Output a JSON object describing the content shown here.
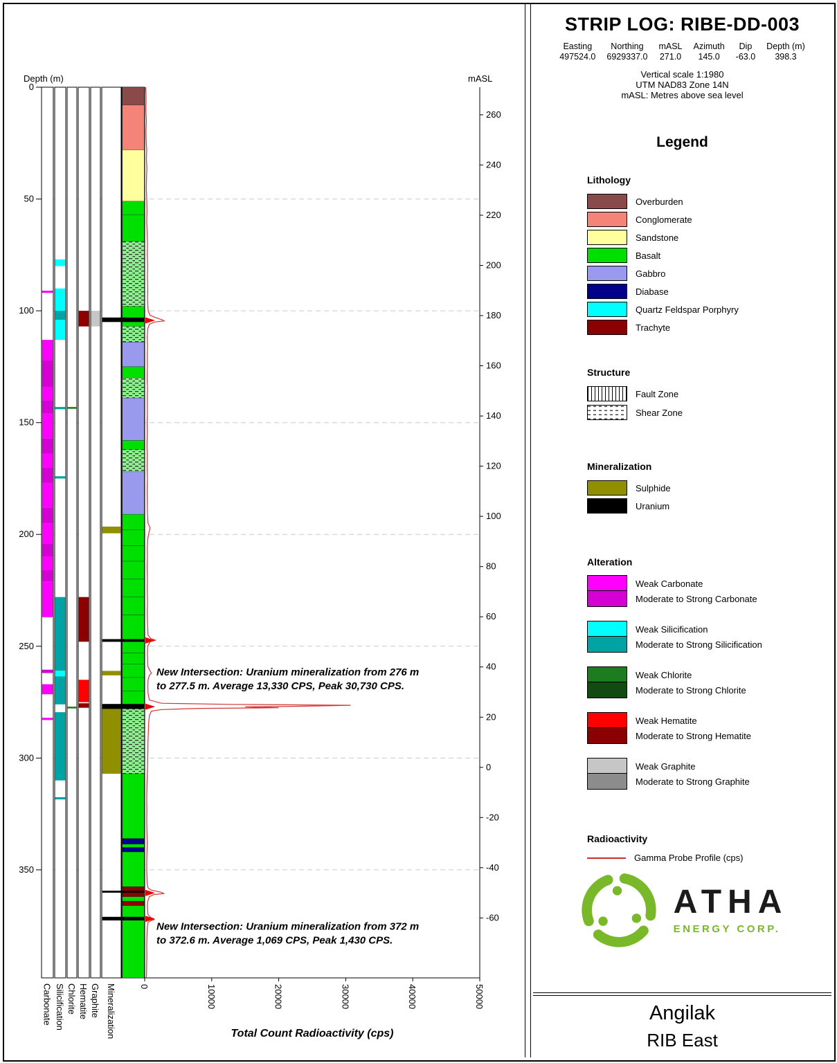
{
  "header": {
    "title": "STRIP LOG: RIBE-DD-003",
    "meta": [
      {
        "label": "Easting",
        "value": "497524.0"
      },
      {
        "label": "Northing",
        "value": "6929337.0"
      },
      {
        "label": "mASL",
        "value": "271.0"
      },
      {
        "label": "Azimuth",
        "value": "145.0"
      },
      {
        "label": "Dip",
        "value": "-63.0"
      },
      {
        "label": "Depth (m)",
        "value": "398.3"
      }
    ],
    "scale_lines": [
      "Vertical scale 1:1980",
      "UTM NAD83 Zone 14N",
      "mASL: Metres above sea level"
    ]
  },
  "legend": {
    "title": "Legend",
    "sections": {
      "lithology": {
        "title": "Lithology",
        "items": [
          {
            "label": "Overburden",
            "color": "#8b4a4a"
          },
          {
            "label": "Conglomerate",
            "color": "#f48478"
          },
          {
            "label": "Sandstone",
            "color": "#ffff9e"
          },
          {
            "label": "Basalt",
            "color": "#00e000"
          },
          {
            "label": "Gabbro",
            "color": "#9999ee"
          },
          {
            "label": "Diabase",
            "color": "#00008b"
          },
          {
            "label": "Quartz Feldspar Porphyry",
            "color": "#00ffff"
          },
          {
            "label": "Trachyte",
            "color": "#8b0000"
          }
        ]
      },
      "structure": {
        "title": "Structure",
        "items": [
          {
            "label": "Fault Zone",
            "pattern": "fault"
          },
          {
            "label": "Shear Zone",
            "pattern": "shear"
          }
        ]
      },
      "mineralization": {
        "title": "Mineralization",
        "items": [
          {
            "label": "Sulphide",
            "color": "#8f8f00"
          },
          {
            "label": "Uranium",
            "color": "#000000"
          }
        ]
      },
      "alteration": {
        "title": "Alteration",
        "pairs": [
          {
            "key": "carbonate",
            "weak_label": "Weak Carbonate",
            "weak_color": "#ff00ff",
            "strong_label": "Moderate to Strong Carbonate",
            "strong_color": "#d400d4"
          },
          {
            "key": "silicification",
            "weak_label": "Weak Silicification",
            "weak_color": "#00ffff",
            "strong_label": "Moderate to Strong Silicification",
            "strong_color": "#00a3a3"
          },
          {
            "key": "chlorite",
            "weak_label": "Weak Chlorite",
            "weak_color": "#1d7c1d",
            "strong_label": "Moderate to Strong Chlorite",
            "strong_color": "#124b12"
          },
          {
            "key": "hematite",
            "weak_label": "Weak Hematite",
            "weak_color": "#ff0000",
            "strong_label": "Moderate to Strong Hematite",
            "strong_color": "#8b0000"
          },
          {
            "key": "graphite",
            "weak_label": "Weak Graphite",
            "weak_color": "#c6c6c6",
            "strong_label": "Moderate to Strong Graphite",
            "strong_color": "#8c8c8c"
          }
        ]
      },
      "radioactivity": {
        "title": "Radioactivity",
        "items": [
          {
            "label": "Gamma Probe Profile (cps)",
            "line_color": "#c03030"
          }
        ]
      }
    }
  },
  "logo": {
    "name": "ATHA",
    "subtitle": "ENERGY CORP.",
    "brand_green": "#79b829"
  },
  "footer": {
    "project": "Angilak",
    "area": "RIB East"
  },
  "chart_data": {
    "type": "striplog",
    "hole_id": "RIBE-DD-003",
    "depth_axis": {
      "label": "Depth (m)",
      "ticks": [
        0,
        50,
        100,
        150,
        200,
        250,
        300,
        350
      ],
      "max": 398.3
    },
    "masl_axis": {
      "label": "mASL",
      "collar_masl": 271.0,
      "dip_degrees": 63.0,
      "ticks": [
        260,
        240,
        220,
        200,
        180,
        160,
        140,
        120,
        100,
        80,
        60,
        40,
        20,
        0,
        -20,
        -40,
        -60
      ]
    },
    "gamma_axis": {
      "label": "Total Count Radioactivity (cps)",
      "ticks": [
        0,
        10000,
        20000,
        30000,
        40000,
        50000
      ],
      "max": 50000,
      "color": "#d03434",
      "arrow_color": "#e80000"
    },
    "columns": [
      "Carbonate",
      "Silicification",
      "Chlorite",
      "Hematite",
      "Graphite",
      "Mineralization"
    ],
    "lithology_intervals": [
      {
        "from": 0,
        "to": 8,
        "unit": "Overburden"
      },
      {
        "from": 8,
        "to": 28,
        "unit": "Conglomerate"
      },
      {
        "from": 28,
        "to": 51,
        "unit": "Sandstone"
      },
      {
        "from": 51,
        "to": 57,
        "unit": "Basalt"
      },
      {
        "from": 57,
        "to": 69,
        "unit": "Basalt"
      },
      {
        "from": 69,
        "to": 98,
        "unit": "Basalt",
        "structure": "Shear Zone"
      },
      {
        "from": 98,
        "to": 107,
        "unit": "Basalt"
      },
      {
        "from": 107,
        "to": 114,
        "unit": "Basalt",
        "structure": "Shear Zone"
      },
      {
        "from": 114,
        "to": 125,
        "unit": "Gabbro"
      },
      {
        "from": 125,
        "to": 130,
        "unit": "Basalt"
      },
      {
        "from": 130,
        "to": 139,
        "unit": "Basalt",
        "structure": "Shear Zone"
      },
      {
        "from": 139,
        "to": 158,
        "unit": "Gabbro"
      },
      {
        "from": 158,
        "to": 162,
        "unit": "Basalt"
      },
      {
        "from": 162,
        "to": 172,
        "unit": "Basalt",
        "structure": "Shear Zone"
      },
      {
        "from": 172,
        "to": 191,
        "unit": "Gabbro"
      },
      {
        "from": 191,
        "to": 198,
        "unit": "Basalt"
      },
      {
        "from": 198,
        "to": 205,
        "unit": "Basalt"
      },
      {
        "from": 205,
        "to": 212,
        "unit": "Basalt"
      },
      {
        "from": 212,
        "to": 220,
        "unit": "Basalt"
      },
      {
        "from": 220,
        "to": 228,
        "unit": "Basalt"
      },
      {
        "from": 228,
        "to": 236,
        "unit": "Basalt"
      },
      {
        "from": 236,
        "to": 247,
        "unit": "Basalt"
      },
      {
        "from": 247,
        "to": 253,
        "unit": "Basalt"
      },
      {
        "from": 253,
        "to": 258,
        "unit": "Basalt"
      },
      {
        "from": 258,
        "to": 264,
        "unit": "Basalt"
      },
      {
        "from": 264,
        "to": 270,
        "unit": "Basalt"
      },
      {
        "from": 270,
        "to": 278,
        "unit": "Basalt"
      },
      {
        "from": 278,
        "to": 307,
        "unit": "Basalt",
        "structure": "Shear Zone"
      },
      {
        "from": 307,
        "to": 336,
        "unit": "Basalt"
      },
      {
        "from": 336,
        "to": 338.5,
        "unit": "Diabase"
      },
      {
        "from": 338.5,
        "to": 340,
        "unit": "Basalt"
      },
      {
        "from": 340,
        "to": 342,
        "unit": "Diabase"
      },
      {
        "from": 342,
        "to": 357.5,
        "unit": "Basalt"
      },
      {
        "from": 357.5,
        "to": 362,
        "unit": "Trachyte"
      },
      {
        "from": 362,
        "to": 364,
        "unit": "Basalt"
      },
      {
        "from": 364,
        "to": 366,
        "unit": "Trachyte"
      },
      {
        "from": 366,
        "to": 398.3,
        "unit": "Basalt"
      }
    ],
    "alteration": {
      "carbonate": [
        {
          "from": 91,
          "to": 92,
          "grade": "weak"
        },
        {
          "from": 113,
          "to": 122,
          "grade": "weak"
        },
        {
          "from": 122,
          "to": 134,
          "grade": "moderate"
        },
        {
          "from": 134,
          "to": 140,
          "grade": "weak"
        },
        {
          "from": 140,
          "to": 146,
          "grade": "moderate"
        },
        {
          "from": 146,
          "to": 157,
          "grade": "weak"
        },
        {
          "from": 157,
          "to": 164,
          "grade": "moderate"
        },
        {
          "from": 164,
          "to": 170,
          "grade": "weak"
        },
        {
          "from": 170,
          "to": 177,
          "grade": "moderate"
        },
        {
          "from": 177,
          "to": 188,
          "grade": "weak"
        },
        {
          "from": 188,
          "to": 195,
          "grade": "moderate"
        },
        {
          "from": 195,
          "to": 204,
          "grade": "weak"
        },
        {
          "from": 204,
          "to": 210,
          "grade": "moderate"
        },
        {
          "from": 210,
          "to": 216,
          "grade": "weak"
        },
        {
          "from": 216,
          "to": 221,
          "grade": "moderate"
        },
        {
          "from": 221,
          "to": 237,
          "grade": "weak"
        },
        {
          "from": 260.5,
          "to": 262,
          "grade": "moderate"
        },
        {
          "from": 267,
          "to": 271.5,
          "grade": "weak"
        },
        {
          "from": 282,
          "to": 283,
          "grade": "weak"
        }
      ],
      "silicification": [
        {
          "from": 77,
          "to": 80,
          "grade": "weak"
        },
        {
          "from": 90,
          "to": 100,
          "grade": "weak"
        },
        {
          "from": 100,
          "to": 104,
          "grade": "moderate"
        },
        {
          "from": 104,
          "to": 113,
          "grade": "weak"
        },
        {
          "from": 143,
          "to": 144,
          "grade": "moderate"
        },
        {
          "from": 174,
          "to": 175,
          "grade": "moderate"
        },
        {
          "from": 228,
          "to": 261,
          "grade": "moderate"
        },
        {
          "from": 261,
          "to": 263.5,
          "grade": "weak"
        },
        {
          "from": 263.5,
          "to": 276,
          "grade": "moderate"
        },
        {
          "from": 279.5,
          "to": 310,
          "grade": "moderate"
        },
        {
          "from": 317.5,
          "to": 318.5,
          "grade": "moderate"
        }
      ],
      "chlorite": [
        {
          "from": 143,
          "to": 143.8,
          "grade": "weak"
        },
        {
          "from": 277,
          "to": 277.8,
          "grade": "weak"
        }
      ],
      "hematite": [
        {
          "from": 100,
          "to": 107,
          "grade": "moderate"
        },
        {
          "from": 228,
          "to": 248,
          "grade": "moderate"
        },
        {
          "from": 265,
          "to": 275,
          "grade": "weak"
        },
        {
          "from": 275.5,
          "to": 277.5,
          "grade": "moderate"
        }
      ],
      "graphite": [
        {
          "from": 100,
          "to": 107,
          "grade": "weak"
        }
      ]
    },
    "mineralization": {
      "sulphide": [
        [
          196.5,
          199.5
        ],
        [
          261,
          263
        ],
        [
          277.5,
          307
        ]
      ],
      "uranium": [
        [
          103,
          105
        ],
        [
          246.8,
          248
        ],
        [
          275.8,
          278
        ],
        [
          359.3,
          360.2
        ],
        [
          371,
          372.6
        ]
      ]
    },
    "gamma_profile": [
      [
        0,
        150
      ],
      [
        5,
        220
      ],
      [
        10,
        180
      ],
      [
        15,
        260
      ],
      [
        20,
        200
      ],
      [
        25,
        240
      ],
      [
        28,
        300
      ],
      [
        32,
        260
      ],
      [
        36,
        320
      ],
      [
        40,
        280
      ],
      [
        45,
        250
      ],
      [
        50,
        300
      ],
      [
        55,
        340
      ],
      [
        60,
        300
      ],
      [
        65,
        360
      ],
      [
        70,
        420
      ],
      [
        75,
        380
      ],
      [
        80,
        440
      ],
      [
        85,
        400
      ],
      [
        90,
        460
      ],
      [
        95,
        420
      ],
      [
        100,
        520
      ],
      [
        102,
        800
      ],
      [
        103,
        1600
      ],
      [
        104,
        2600
      ],
      [
        104.5,
        2900
      ],
      [
        105,
        1500
      ],
      [
        106,
        700
      ],
      [
        108,
        450
      ],
      [
        112,
        380
      ],
      [
        116,
        420
      ],
      [
        120,
        380
      ],
      [
        125,
        400
      ],
      [
        130,
        360
      ],
      [
        135,
        420
      ],
      [
        140,
        380
      ],
      [
        145,
        400
      ],
      [
        150,
        360
      ],
      [
        155,
        380
      ],
      [
        160,
        340
      ],
      [
        165,
        380
      ],
      [
        170,
        360
      ],
      [
        175,
        400
      ],
      [
        180,
        360
      ],
      [
        185,
        380
      ],
      [
        190,
        400
      ],
      [
        195,
        500
      ],
      [
        197,
        800
      ],
      [
        199,
        650
      ],
      [
        202,
        450
      ],
      [
        206,
        380
      ],
      [
        210,
        400
      ],
      [
        215,
        360
      ],
      [
        220,
        400
      ],
      [
        225,
        380
      ],
      [
        230,
        420
      ],
      [
        235,
        380
      ],
      [
        240,
        420
      ],
      [
        245,
        500
      ],
      [
        246.5,
        900
      ],
      [
        247.3,
        1600
      ],
      [
        248,
        800
      ],
      [
        250,
        450
      ],
      [
        253,
        400
      ],
      [
        256,
        440
      ],
      [
        259,
        480
      ],
      [
        261,
        800
      ],
      [
        262,
        1000
      ],
      [
        263,
        700
      ],
      [
        265,
        500
      ],
      [
        268,
        460
      ],
      [
        271,
        500
      ],
      [
        274,
        700
      ],
      [
        275.5,
        2500
      ],
      [
        276,
        13000
      ],
      [
        276.4,
        30730
      ],
      [
        276.8,
        24000
      ],
      [
        277.1,
        15000
      ],
      [
        277.5,
        20000
      ],
      [
        277.8,
        8000
      ],
      [
        278.3,
        2500
      ],
      [
        279,
        1000
      ],
      [
        281,
        700
      ],
      [
        284,
        600
      ],
      [
        288,
        550
      ],
      [
        292,
        500
      ],
      [
        296,
        480
      ],
      [
        300,
        450
      ],
      [
        304,
        420
      ],
      [
        308,
        380
      ],
      [
        313,
        330
      ],
      [
        318,
        300
      ],
      [
        323,
        320
      ],
      [
        328,
        300
      ],
      [
        334,
        340
      ],
      [
        338,
        380
      ],
      [
        342,
        340
      ],
      [
        347,
        300
      ],
      [
        352,
        320
      ],
      [
        356,
        360
      ],
      [
        358,
        500
      ],
      [
        359,
        900
      ],
      [
        360,
        2400
      ],
      [
        360.6,
        2900
      ],
      [
        361,
        1400
      ],
      [
        362,
        700
      ],
      [
        364,
        450
      ],
      [
        366,
        400
      ],
      [
        368,
        430
      ],
      [
        370,
        500
      ],
      [
        371.3,
        900
      ],
      [
        371.8,
        1300
      ],
      [
        372.2,
        1430
      ],
      [
        372.6,
        1000
      ],
      [
        373.5,
        500
      ],
      [
        376,
        380
      ],
      [
        380,
        330
      ],
      [
        384,
        300
      ],
      [
        388,
        320
      ],
      [
        392,
        300
      ],
      [
        396,
        280
      ],
      [
        398.3,
        260
      ]
    ],
    "gamma_arrows": [
      104.3,
      247.4,
      277.0,
      360.3,
      371.9
    ],
    "annotations": [
      {
        "depth": 263,
        "lines": [
          "New Intersection: Uranium mineralization from 276 m",
          "to 277.5 m. Average 13,330 CPS, Peak 30,730 CPS."
        ]
      },
      {
        "depth": 376.8,
        "lines": [
          "New Intersection: Uranium mineralization from 372 m",
          "to 372.6 m. Average 1,069 CPS, Peak 1,430 CPS."
        ]
      }
    ]
  }
}
